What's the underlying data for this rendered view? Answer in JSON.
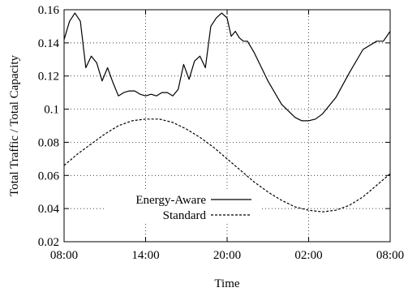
{
  "chart_data": {
    "type": "line",
    "xlabel": "Time",
    "ylabel": "Total Traffic / Total Capacity",
    "x_tick_labels": [
      "08:00",
      "14:00",
      "20:00",
      "02:00",
      "08:00"
    ],
    "x_tick_hours": [
      0,
      6,
      12,
      18,
      24
    ],
    "xlim_hours": [
      0,
      24
    ],
    "ylim": [
      0.02,
      0.16
    ],
    "y_ticks": [
      0.02,
      0.04,
      0.06,
      0.08,
      0.1,
      0.12,
      0.14,
      0.16
    ],
    "y_tick_labels": [
      "0.02",
      "0.04",
      "0.06",
      "0.08",
      "0.1",
      "0.12",
      "0.14",
      "0.16"
    ],
    "grid": true,
    "legend_position": "bottom-left",
    "series": [
      {
        "name": "Energy-Aware",
        "style": "solid",
        "x_hours": [
          0,
          0.4,
          0.8,
          1.2,
          1.6,
          2.0,
          2.4,
          2.8,
          3.2,
          3.6,
          4.0,
          4.4,
          4.8,
          5.2,
          5.6,
          6.0,
          6.4,
          6.8,
          7.2,
          7.6,
          8.0,
          8.4,
          8.8,
          9.2,
          9.6,
          10.0,
          10.4,
          10.8,
          11.2,
          11.6,
          12.0,
          12.3,
          12.6,
          12.9,
          13.2,
          13.5,
          14,
          15,
          16,
          17,
          17.5,
          18,
          18.5,
          19,
          20,
          21,
          22,
          23,
          23.5,
          24
        ],
        "values": [
          0.142,
          0.153,
          0.158,
          0.153,
          0.125,
          0.132,
          0.128,
          0.117,
          0.125,
          0.116,
          0.108,
          0.11,
          0.111,
          0.111,
          0.109,
          0.108,
          0.109,
          0.108,
          0.11,
          0.11,
          0.108,
          0.112,
          0.127,
          0.118,
          0.129,
          0.132,
          0.125,
          0.15,
          0.155,
          0.158,
          0.155,
          0.144,
          0.147,
          0.143,
          0.141,
          0.141,
          0.134,
          0.117,
          0.103,
          0.095,
          0.093,
          0.093,
          0.094,
          0.097,
          0.107,
          0.122,
          0.136,
          0.141,
          0.141,
          0.147
        ]
      },
      {
        "name": "Standard",
        "style": "dashed",
        "x_hours": [
          0,
          1,
          2,
          3,
          4,
          5,
          6,
          7,
          8,
          9,
          10,
          11,
          12,
          13,
          14,
          15,
          16,
          17,
          18,
          19,
          20,
          21,
          22,
          23,
          24
        ],
        "values": [
          0.066,
          0.073,
          0.079,
          0.085,
          0.09,
          0.093,
          0.094,
          0.094,
          0.092,
          0.088,
          0.083,
          0.077,
          0.07,
          0.063,
          0.056,
          0.05,
          0.045,
          0.041,
          0.039,
          0.038,
          0.039,
          0.042,
          0.047,
          0.054,
          0.061
        ]
      }
    ]
  }
}
